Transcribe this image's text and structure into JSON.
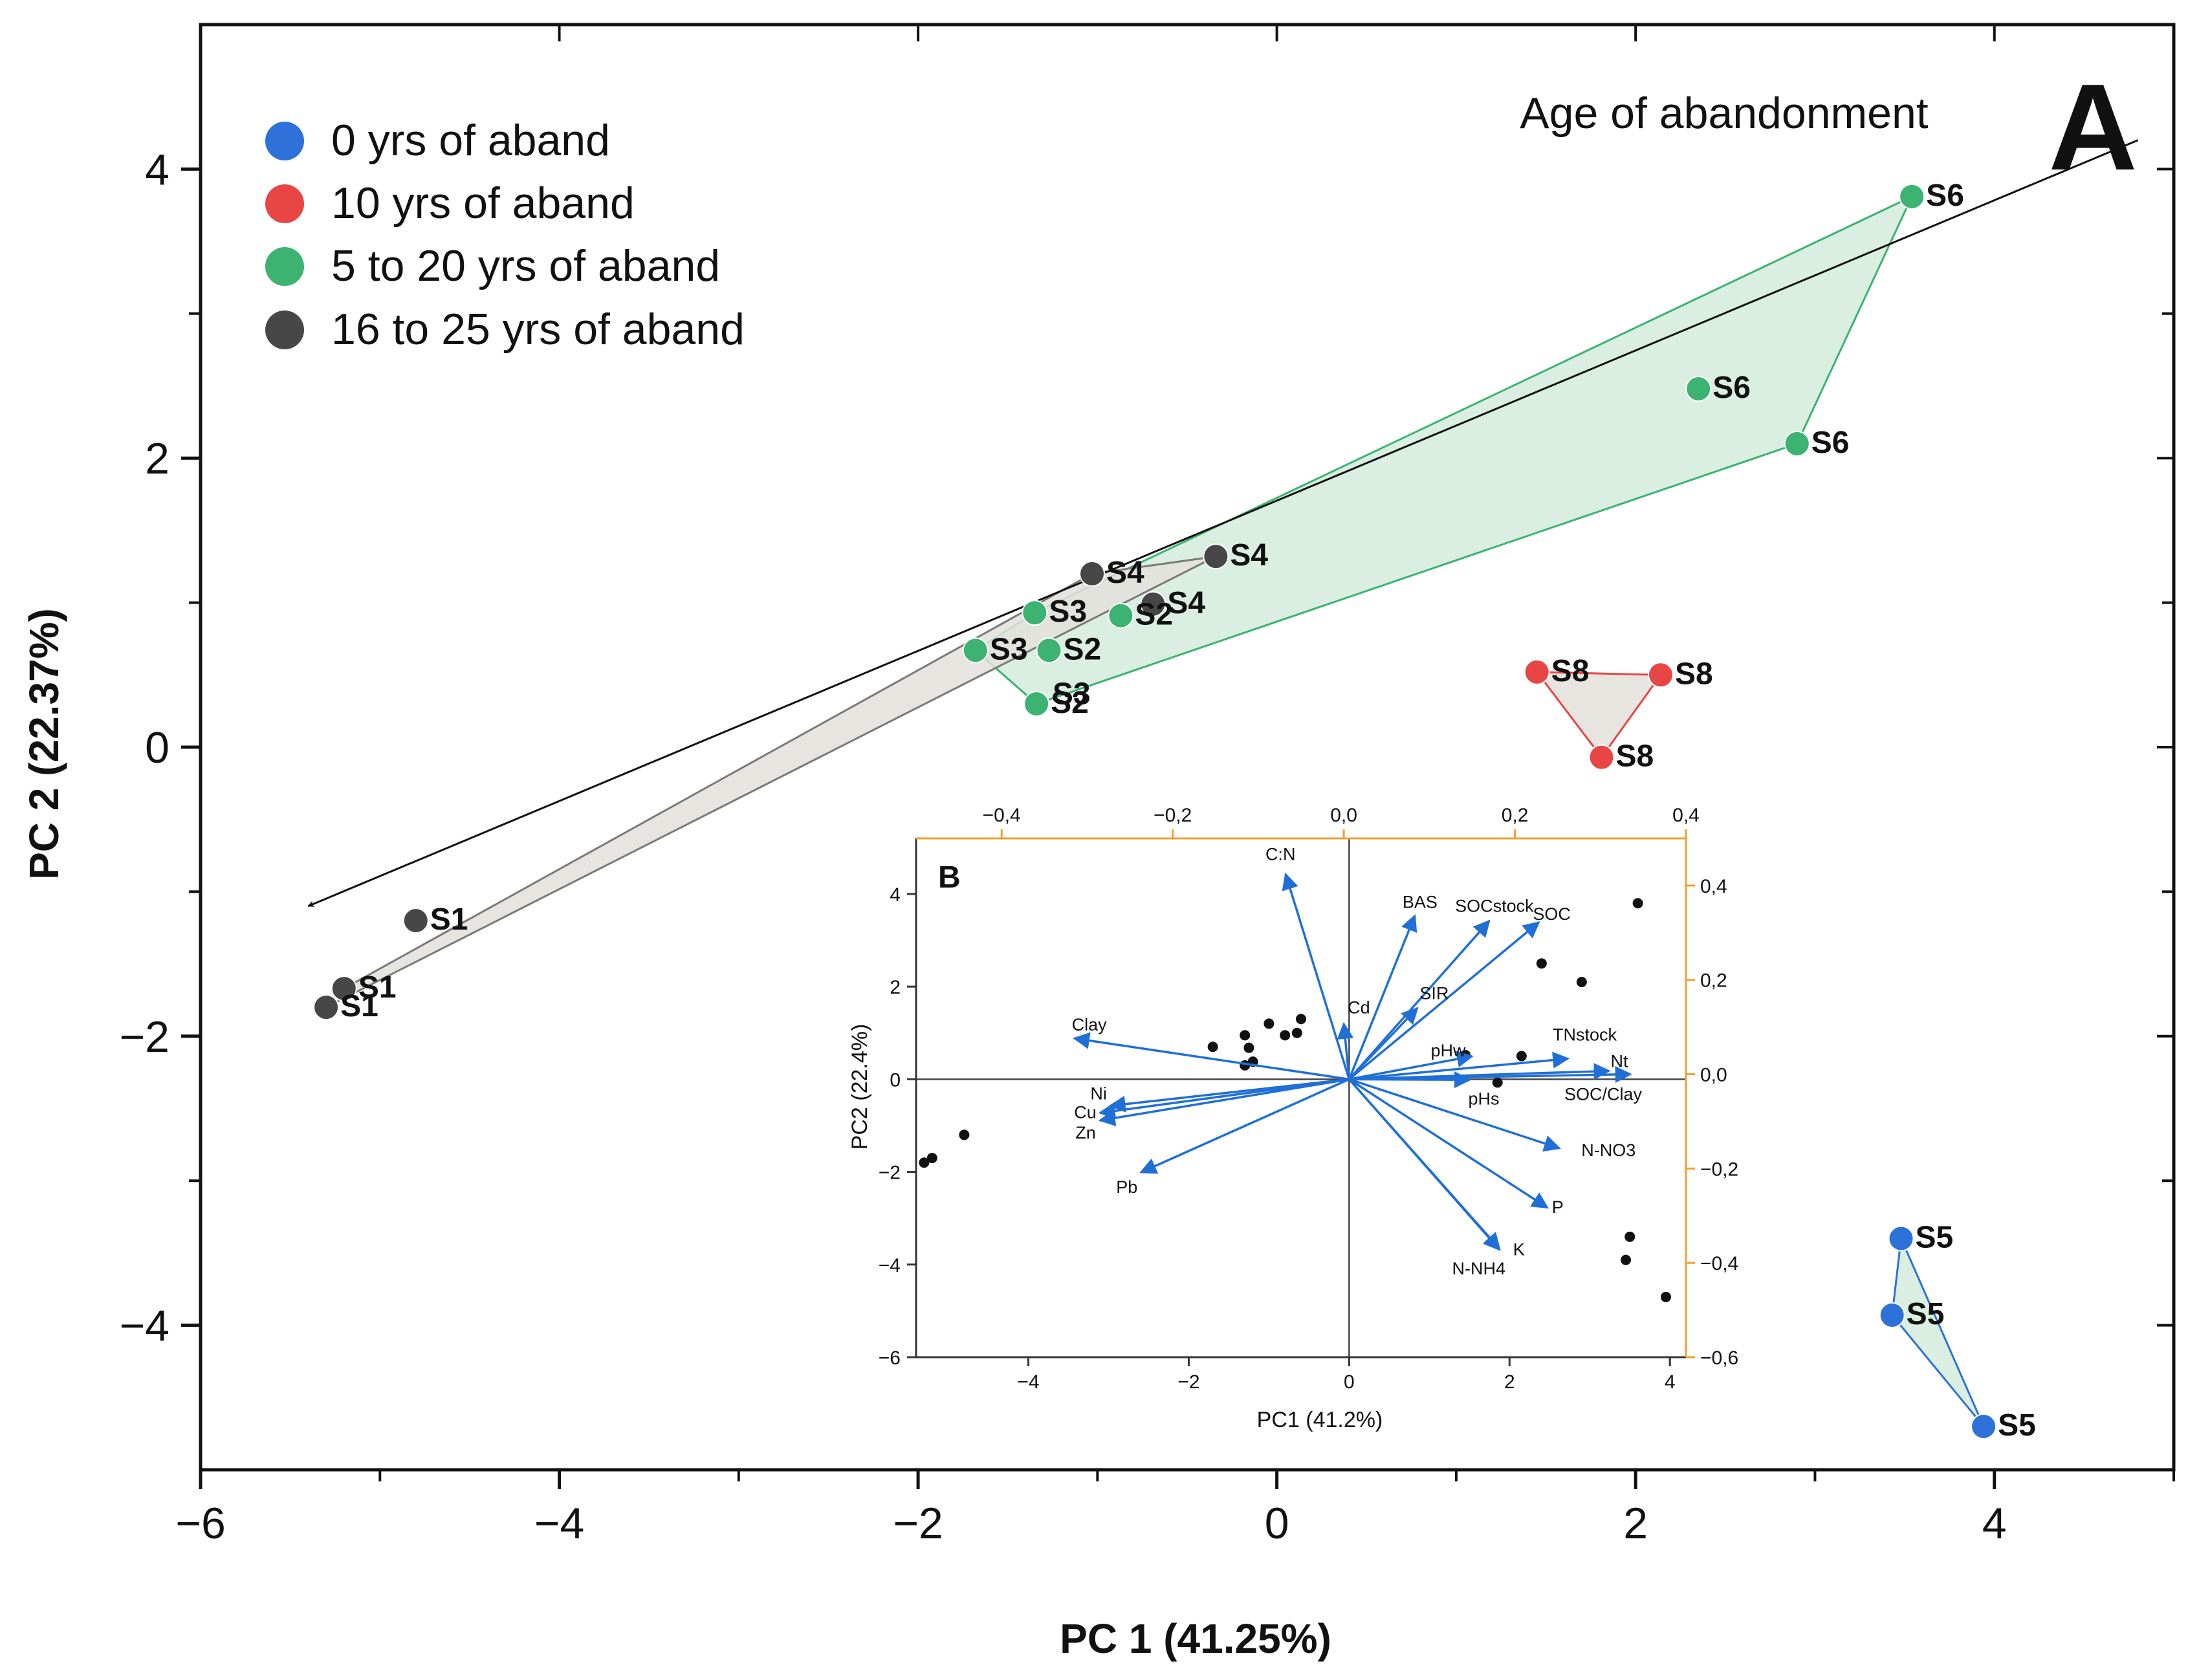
{
  "chart_data": [
    {
      "type": "scatter",
      "panel": "A",
      "xlabel": "PC 1 (41.25%)",
      "ylabel": "PC 2 (22.37%)",
      "xlim": [
        -6,
        5
      ],
      "ylim": [
        -5,
        5
      ],
      "xticks": [
        -6,
        -4,
        -2,
        0,
        2,
        4
      ],
      "yticks": [
        -4,
        -2,
        0,
        2,
        4
      ],
      "tick_labels_x": [
        "−6",
        "−4",
        "−2",
        "0",
        "2",
        "4"
      ],
      "tick_labels_y": [
        "−4",
        "−2",
        "0",
        "2",
        "4"
      ],
      "legend_position": "top-left",
      "arrow_label": "Age of abandonment",
      "arrow_from": [
        4.8,
        4.2
      ],
      "arrow_to": [
        -5.4,
        -1.1
      ],
      "series": [
        {
          "name": "0 yrs of aband",
          "color": "#2e72d9",
          "points": [
            {
              "x": 3.48,
              "y": -3.4,
              "label": "S5"
            },
            {
              "x": 3.43,
              "y": -3.93,
              "label": "S5"
            },
            {
              "x": 3.94,
              "y": -4.7,
              "label": "S5"
            }
          ]
        },
        {
          "name": "10 yrs of aband",
          "color": "#e84545",
          "points": [
            {
              "x": 1.45,
              "y": 0.52,
              "label": "S8"
            },
            {
              "x": 2.14,
              "y": 0.5,
              "label": "S8"
            },
            {
              "x": 1.81,
              "y": -0.07,
              "label": "S8"
            }
          ]
        },
        {
          "name": "5 to 20 yrs of aband",
          "color": "#3cb371",
          "points": [
            {
              "x": 3.54,
              "y": 3.81,
              "label": "S6"
            },
            {
              "x": 2.35,
              "y": 2.48,
              "label": "S6"
            },
            {
              "x": 2.9,
              "y": 2.1,
              "label": "S6"
            },
            {
              "x": -1.35,
              "y": 0.93,
              "label": "S3"
            },
            {
              "x": -1.68,
              "y": 0.67,
              "label": "S3"
            },
            {
              "x": -0.87,
              "y": 0.91,
              "label": "S2"
            },
            {
              "x": -1.27,
              "y": 0.67,
              "label": "S2"
            },
            {
              "x": -1.34,
              "y": 0.3,
              "label": "S2"
            }
          ]
        },
        {
          "name": "16 to 25 yrs of aband",
          "color": "#474747",
          "points": [
            {
              "x": -1.03,
              "y": 1.2,
              "label": "S4"
            },
            {
              "x": -0.34,
              "y": 1.32,
              "label": "S4"
            },
            {
              "x": -0.69,
              "y": 0.99,
              "label": "S4"
            },
            {
              "x": -4.8,
              "y": -1.2,
              "label": "S1"
            },
            {
              "x": -5.2,
              "y": -1.67,
              "label": "S1"
            },
            {
              "x": -5.3,
              "y": -1.8,
              "label": "S1"
            }
          ]
        }
      ],
      "extra_labels": [
        {
          "x": -1.33,
          "y": 0.36,
          "text": "S3"
        }
      ],
      "hulls": [
        {
          "name": "5 to 20 yrs of aband",
          "fill": "#d3ecdc",
          "stroke": "#3cb371",
          "points": [
            [
              3.54,
              3.81
            ],
            [
              2.9,
              2.1
            ],
            [
              -1.34,
              0.3
            ],
            [
              -1.68,
              0.67
            ],
            [
              -1.35,
              0.93
            ]
          ]
        },
        {
          "name": "16 to 25 yrs of aband",
          "fill": "#e2e0da",
          "stroke": "#7a7a7a",
          "points": [
            [
              -0.34,
              1.32
            ],
            [
              -5.3,
              -1.8
            ],
            [
              -5.2,
              -1.67
            ],
            [
              -1.03,
              1.2
            ]
          ]
        },
        {
          "name": "10 yrs of aband",
          "fill": "#e2e0da",
          "stroke": "#e84545",
          "points": [
            [
              1.45,
              0.52
            ],
            [
              2.14,
              0.5
            ],
            [
              1.81,
              -0.07
            ]
          ]
        },
        {
          "name": "0 yrs of aband",
          "fill": "#d3ecdc",
          "stroke": "#2e72d9",
          "points": [
            [
              3.48,
              -3.4
            ],
            [
              3.43,
              -3.93
            ],
            [
              3.94,
              -4.7
            ]
          ]
        }
      ]
    },
    {
      "type": "scatter",
      "panel": "B",
      "subtype": "biplot",
      "xlabel": "PC1 (41.2%)",
      "ylabel": "PC2 (22.4%)",
      "xlim": [
        -5.4,
        4.2
      ],
      "ylim": [
        -6,
        5.2
      ],
      "loading_lim_x": [
        -0.5,
        0.4
      ],
      "loading_lim_y": [
        -0.6,
        0.5
      ],
      "xticks": [
        -4,
        -2,
        0,
        2,
        4
      ],
      "yticks": [
        -6,
        -4,
        -2,
        0,
        2,
        4
      ],
      "tick_labels_x": [
        "−4",
        "−2",
        "0",
        "2",
        "4"
      ],
      "tick_labels_y": [
        "−6",
        "−4",
        "−2",
        "0",
        "2",
        "4"
      ],
      "top_ticks": [
        -0.4,
        -0.2,
        0.0,
        0.2,
        0.4
      ],
      "top_tick_labels": [
        "−0,4",
        "−0,2",
        "0,0",
        "0,2",
        "0,4"
      ],
      "right_ticks": [
        -0.6,
        -0.4,
        -0.2,
        0.0,
        0.2,
        0.4
      ],
      "right_tick_labels": [
        "−0,6",
        "−0,4",
        "−0,2",
        "0,0",
        "0,2",
        "0,4"
      ],
      "arrow_color": "#1f6fd6",
      "axis_color": "#f0a030",
      "scores": [
        {
          "x": 3.6,
          "y": 3.8
        },
        {
          "x": 2.4,
          "y": 2.5
        },
        {
          "x": 2.9,
          "y": 2.1
        },
        {
          "x": -0.6,
          "y": 1.3
        },
        {
          "x": -1.0,
          "y": 1.2
        },
        {
          "x": -1.3,
          "y": 0.95
        },
        {
          "x": -0.8,
          "y": 0.95
        },
        {
          "x": -0.65,
          "y": 1.0
        },
        {
          "x": -1.7,
          "y": 0.7
        },
        {
          "x": -1.25,
          "y": 0.68
        },
        {
          "x": -1.2,
          "y": 0.38
        },
        {
          "x": -1.3,
          "y": 0.3
        },
        {
          "x": 1.45,
          "y": 0.52
        },
        {
          "x": 2.15,
          "y": 0.5
        },
        {
          "x": 1.85,
          "y": -0.07
        },
        {
          "x": 3.5,
          "y": -3.4
        },
        {
          "x": 3.45,
          "y": -3.9
        },
        {
          "x": 3.95,
          "y": -4.7
        },
        {
          "x": -4.8,
          "y": -1.2
        },
        {
          "x": -5.2,
          "y": -1.7
        },
        {
          "x": -5.3,
          "y": -1.8
        }
      ],
      "loadings": [
        {
          "name": "C:N",
          "x": -0.068,
          "y": 0.424
        },
        {
          "name": "BAS",
          "x": 0.083,
          "y": 0.336
        },
        {
          "name": "SOCstock",
          "x": 0.17,
          "y": 0.325
        },
        {
          "name": "SOC",
          "x": 0.228,
          "y": 0.322
        },
        {
          "name": "SIR",
          "x": 0.086,
          "y": 0.14
        },
        {
          "name": "Cd",
          "x": 0.0,
          "y": 0.107
        },
        {
          "name": "Clay",
          "x": -0.315,
          "y": 0.076
        },
        {
          "name": "pHw",
          "x": 0.15,
          "y": 0.038
        },
        {
          "name": "TNstock",
          "x": 0.262,
          "y": 0.033
        },
        {
          "name": "Nt",
          "x": 0.31,
          "y": 0.007
        },
        {
          "name": "SOC/Clay",
          "x": 0.335,
          "y": 0.0
        },
        {
          "name": "pHs",
          "x": 0.147,
          "y": -0.012
        },
        {
          "name": "Ni",
          "x": -0.273,
          "y": -0.067
        },
        {
          "name": "Cu",
          "x": -0.285,
          "y": -0.082
        },
        {
          "name": "Zn",
          "x": -0.285,
          "y": -0.098
        },
        {
          "name": "N-NO3",
          "x": 0.252,
          "y": -0.157
        },
        {
          "name": "Pb",
          "x": -0.237,
          "y": -0.208
        },
        {
          "name": "P",
          "x": 0.238,
          "y": -0.283
        },
        {
          "name": "K",
          "x": 0.182,
          "y": -0.37
        },
        {
          "name": "N-NH4",
          "x": 0.182,
          "y": -0.372
        }
      ]
    }
  ]
}
